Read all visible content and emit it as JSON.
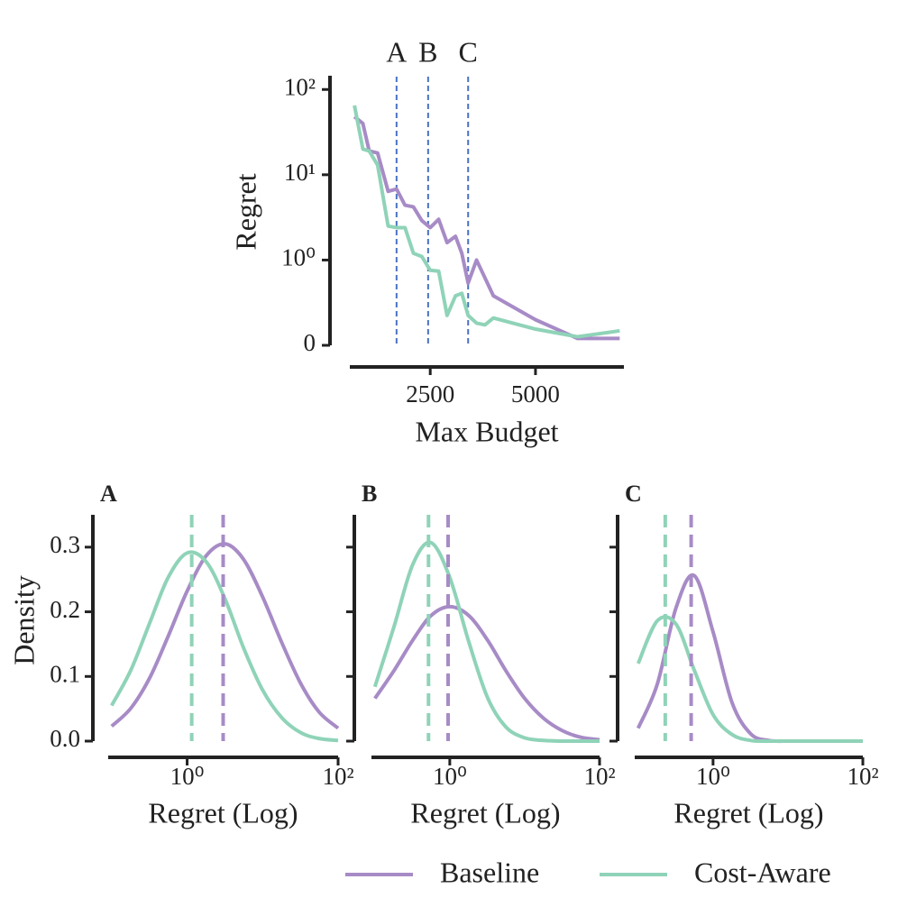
{
  "chart_data": [
    {
      "type": "line",
      "xlabel": "Max Budget",
      "ylabel": "Regret",
      "x": [
        700,
        900,
        1050,
        1250,
        1500,
        1700,
        1900,
        2100,
        2300,
        2500,
        2700,
        2900,
        3100,
        3250,
        3400,
        3600,
        3800,
        4000,
        5000,
        6000,
        7000
      ],
      "series": [
        {
          "name": "Baseline",
          "color": "#a78bc6",
          "values": [
            48,
            40,
            19,
            18,
            6.4,
            6.8,
            4.4,
            4.2,
            2.9,
            2.4,
            3.0,
            1.6,
            1.9,
            1.2,
            0.73,
            1.0,
            0.79,
            0.58,
            0.3,
            0.08,
            0.08
          ]
        },
        {
          "name": "Cost-Aware",
          "color": "#8fd3b8",
          "values": [
            65,
            20,
            19,
            13,
            2.5,
            2.4,
            2.4,
            1.2,
            1.1,
            0.88,
            0.87,
            0.35,
            0.58,
            0.61,
            0.35,
            0.26,
            0.24,
            0.32,
            0.19,
            0.1,
            0.17
          ]
        }
      ],
      "xlim": [
        590,
        7100
      ],
      "ylim": [
        0,
        145
      ],
      "yscale": "symlog",
      "xticks": [
        2500,
        5000
      ],
      "yticks": [
        0,
        {
          "value": 1,
          "label": "10⁰"
        },
        {
          "value": 10,
          "label": "10¹"
        },
        {
          "value": 100,
          "label": "10²"
        }
      ],
      "vlines": [
        {
          "x": 1700,
          "label": "A"
        },
        {
          "x": 2450,
          "label": "B"
        },
        {
          "x": 3400,
          "label": "C"
        }
      ],
      "vline_color": "#4a72c4"
    },
    {
      "type": "density",
      "title": "A",
      "xlabel": "Regret (Log)",
      "ylabel": "Density",
      "xscale": "log",
      "x": [
        0.1,
        0.18,
        0.32,
        0.56,
        1,
        1.8,
        3.2,
        5.6,
        10,
        18,
        32,
        56,
        100
      ],
      "series": [
        {
          "color": "#a78bc6",
          "median": 3.0,
          "values": [
            0.023,
            0.051,
            0.098,
            0.162,
            0.232,
            0.287,
            0.305,
            0.281,
            0.223,
            0.152,
            0.089,
            0.045,
            0.02
          ]
        },
        {
          "color": "#8fd3b8",
          "median": 1.15,
          "values": [
            0.055,
            0.11,
            0.183,
            0.253,
            0.291,
            0.277,
            0.219,
            0.144,
            0.079,
            0.036,
            0.013,
            0.004,
            0.001
          ]
        }
      ],
      "xlim": [
        0.09,
        100
      ],
      "ylim": [
        0,
        0.35
      ],
      "xticks": [
        {
          "value": 1,
          "label": "10⁰"
        },
        {
          "value": 100,
          "label": "10²"
        }
      ],
      "yticks": [
        {
          "value": 0,
          "label": "0.0"
        },
        0.1,
        0.2,
        0.3
      ],
      "ytick_labels": true
    },
    {
      "type": "density",
      "title": "B",
      "xlabel": "Regret (Log)",
      "xscale": "log",
      "x": [
        0.1,
        0.18,
        0.32,
        0.56,
        1,
        1.8,
        3.2,
        5.6,
        10,
        18,
        32,
        56,
        100
      ],
      "series": [
        {
          "color": "#a78bc6",
          "median": 0.95,
          "values": [
            0.066,
            0.109,
            0.156,
            0.194,
            0.208,
            0.194,
            0.156,
            0.109,
            0.066,
            0.035,
            0.016,
            0.006,
            0.002
          ]
        },
        {
          "color": "#8fd3b8",
          "median": 0.52,
          "values": [
            0.084,
            0.177,
            0.273,
            0.307,
            0.253,
            0.153,
            0.067,
            0.022,
            0.005,
            0.001,
            0,
            0,
            0
          ]
        }
      ],
      "xlim": [
        0.09,
        100
      ],
      "ylim": [
        0,
        0.35
      ],
      "xticks": [
        {
          "value": 1,
          "label": "10⁰"
        },
        {
          "value": 100,
          "label": "10²"
        }
      ],
      "yticks": [
        0,
        0.1,
        0.2,
        0.3
      ],
      "ytick_labels": false
    },
    {
      "type": "density",
      "title": "C",
      "xlabel": "Regret (Log)",
      "xscale": "log",
      "x": [
        0.1,
        0.18,
        0.32,
        0.56,
        1,
        1.8,
        3.2,
        5.6,
        10,
        18,
        32,
        56,
        100
      ],
      "series": [
        {
          "color": "#a78bc6",
          "median": 0.51,
          "values": [
            0.02,
            0.088,
            0.206,
            0.256,
            0.169,
            0.059,
            0.011,
            0.001,
            0,
            0,
            0,
            0,
            0
          ]
        },
        {
          "color": "#8fd3b8",
          "median": 0.23,
          "values": [
            0.12,
            0.186,
            0.181,
            0.11,
            0.041,
            0.01,
            0.001,
            0,
            0,
            0,
            0,
            0,
            0
          ]
        }
      ],
      "xlim": [
        0.09,
        100
      ],
      "ylim": [
        0,
        0.35
      ],
      "xticks": [
        {
          "value": 1,
          "label": "10⁰"
        },
        {
          "value": 100,
          "label": "10²"
        }
      ],
      "yticks": [
        0,
        0.1,
        0.2,
        0.3
      ],
      "ytick_labels": false
    }
  ]
}
